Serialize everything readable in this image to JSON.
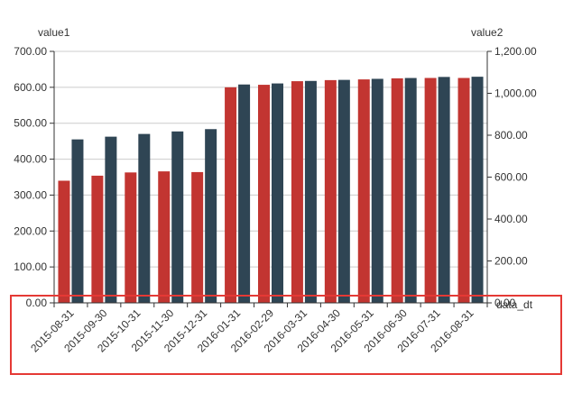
{
  "chart_data": {
    "type": "bar",
    "categories": [
      "2015-08-31",
      "2015-09-30",
      "2015-10-31",
      "2015-11-30",
      "2015-12-31",
      "2016-01-31",
      "2016-02-29",
      "2016-03-31",
      "2016-04-30",
      "2016-05-31",
      "2016-06-30",
      "2016-07-31",
      "2016-08-31"
    ],
    "series": [
      {
        "name": "value1",
        "axis": "left",
        "color": "#c23531",
        "values": [
          340,
          354,
          363,
          366,
          364,
          600,
          607,
          617,
          620,
          622,
          625,
          626,
          626
        ]
      },
      {
        "name": "value2",
        "axis": "right",
        "color": "#2f4554",
        "values": [
          780,
          793,
          806,
          818,
          829,
          1042,
          1047,
          1059,
          1064,
          1069,
          1073,
          1078,
          1079
        ]
      }
    ],
    "xlabel": "data_dt",
    "ylabel_left": "value1",
    "ylabel_right": "value2",
    "ylim_left": [
      0,
      700
    ],
    "ylim_right": [
      0,
      1200
    ],
    "yticks_left": [
      "0.00",
      "100.00",
      "200.00",
      "300.00",
      "400.00",
      "500.00",
      "600.00",
      "700.00"
    ],
    "yticks_right": [
      "0.00",
      "200.00",
      "400.00",
      "600.00",
      "800.00",
      "1,000.00",
      "1,200.00"
    ],
    "grid": true,
    "highlight_color": "#e53935"
  }
}
